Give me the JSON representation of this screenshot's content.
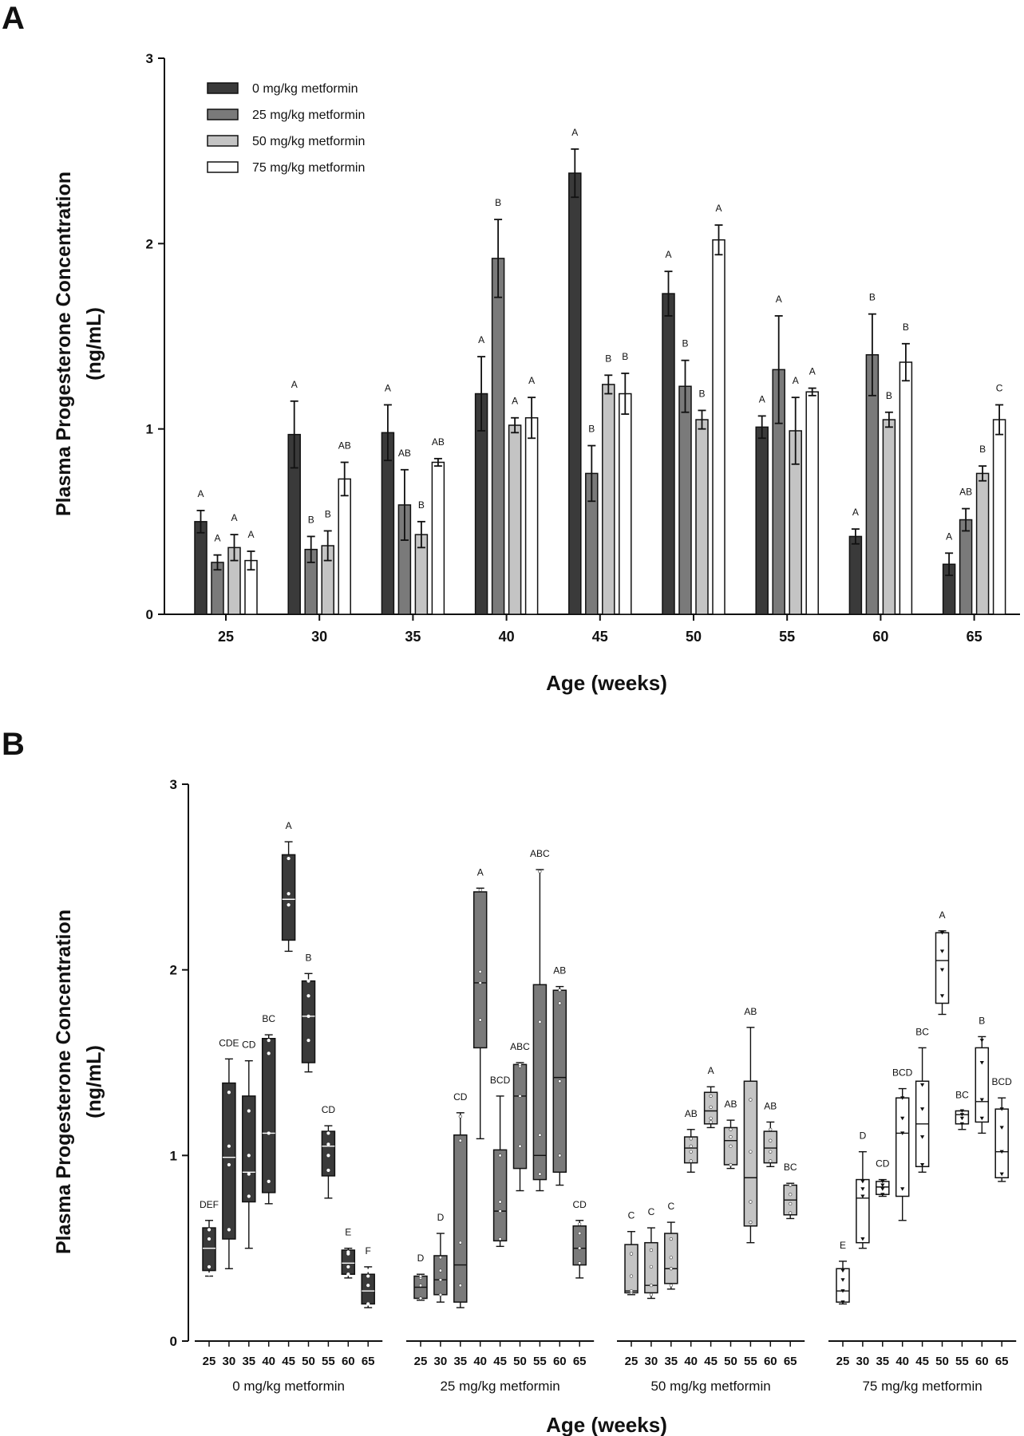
{
  "figure": {
    "panel_a_label": "A",
    "panel_b_label": "B"
  },
  "colors": {
    "dose0": "#3a3a3a",
    "dose25": "#7a7a7a",
    "dose50": "#c4c4c4",
    "dose75": "#ffffff",
    "stroke": "#111111"
  },
  "chart_data": [
    {
      "type": "bar",
      "panel": "A",
      "title": "",
      "xlabel": "Age (weeks)",
      "ylabel_line1": "Plasma Progesterone Concentration",
      "ylabel_line2": "(ng/mL)",
      "ylim": [
        0,
        3
      ],
      "yticks": [
        0,
        1,
        2,
        3
      ],
      "legend_position": "top-left",
      "categories": [
        "25",
        "30",
        "35",
        "40",
        "45",
        "50",
        "55",
        "60",
        "65"
      ],
      "series": [
        {
          "name": "0 mg/kg metformin",
          "values": [
            0.5,
            0.97,
            0.98,
            1.19,
            2.38,
            1.73,
            1.01,
            0.42,
            0.27
          ],
          "errors": [
            0.06,
            0.18,
            0.15,
            0.2,
            0.13,
            0.12,
            0.06,
            0.04,
            0.06
          ],
          "letters": [
            "A",
            "A",
            "A",
            "A",
            "A",
            "A",
            "A",
            "A",
            "A"
          ]
        },
        {
          "name": "25 mg/kg metformin",
          "values": [
            0.28,
            0.35,
            0.59,
            1.92,
            0.76,
            1.23,
            1.32,
            1.4,
            0.51
          ],
          "errors": [
            0.04,
            0.07,
            0.19,
            0.21,
            0.15,
            0.14,
            0.29,
            0.22,
            0.06
          ],
          "letters": [
            "A",
            "B",
            "AB",
            "B",
            "B",
            "B",
            "A",
            "B",
            "AB"
          ]
        },
        {
          "name": "50 mg/kg metformin",
          "values": [
            0.36,
            0.37,
            0.43,
            1.02,
            1.24,
            1.05,
            0.99,
            1.05,
            0.76
          ],
          "errors": [
            0.07,
            0.08,
            0.07,
            0.04,
            0.05,
            0.05,
            0.18,
            0.04,
            0.04
          ],
          "letters": [
            "A",
            "B",
            "B",
            "A",
            "B",
            "B",
            "A",
            "B",
            "B"
          ]
        },
        {
          "name": "75 mg/kg metformin",
          "values": [
            0.29,
            0.73,
            0.82,
            1.06,
            1.19,
            2.02,
            1.2,
            1.36,
            1.05
          ],
          "errors": [
            0.05,
            0.09,
            0.02,
            0.11,
            0.11,
            0.08,
            0.02,
            0.1,
            0.08
          ],
          "letters": [
            "A",
            "AB",
            "AB",
            "A",
            "B",
            "A",
            "A",
            "B",
            "C"
          ]
        }
      ]
    },
    {
      "type": "box",
      "panel": "B",
      "title": "",
      "xlabel": "Age (weeks)",
      "ylabel_line1": "Plasma Progesterone Concentration",
      "ylabel_line2": "(ng/mL)",
      "ylim": [
        0,
        3
      ],
      "yticks": [
        0,
        1,
        2,
        3
      ],
      "ages": [
        "25",
        "30",
        "35",
        "40",
        "45",
        "50",
        "55",
        "60",
        "65"
      ],
      "groups": [
        {
          "name": "0 mg/kg metformin",
          "letters": [
            "DEF",
            "CDE",
            "CD",
            "BC",
            "A",
            "B",
            "CD",
            "E",
            "F"
          ],
          "boxes": [
            {
              "min": 0.35,
              "q1": 0.38,
              "median": 0.5,
              "q3": 0.61,
              "max": 0.65,
              "points": [
                0.36,
                0.4,
                0.55,
                0.6
              ]
            },
            {
              "min": 0.39,
              "q1": 0.55,
              "median": 0.99,
              "q3": 1.39,
              "max": 1.52,
              "points": [
                0.6,
                0.95,
                1.05,
                1.34
              ]
            },
            {
              "min": 0.5,
              "q1": 0.75,
              "median": 0.91,
              "q3": 1.32,
              "max": 1.51,
              "points": [
                0.78,
                0.9,
                1.0,
                1.24
              ]
            },
            {
              "min": 0.74,
              "q1": 0.8,
              "median": 1.12,
              "q3": 1.63,
              "max": 1.65,
              "points": [
                0.86,
                1.12,
                1.55,
                1.62
              ]
            },
            {
              "min": 2.1,
              "q1": 2.16,
              "median": 2.38,
              "q3": 2.62,
              "max": 2.69,
              "points": [
                2.35,
                2.41,
                2.6
              ]
            },
            {
              "min": 1.45,
              "q1": 1.5,
              "median": 1.75,
              "q3": 1.94,
              "max": 1.98,
              "points": [
                1.62,
                1.75,
                1.86,
                1.94
              ]
            },
            {
              "min": 0.77,
              "q1": 0.89,
              "median": 1.05,
              "q3": 1.13,
              "max": 1.16,
              "points": [
                0.92,
                1.0,
                1.06,
                1.12
              ]
            },
            {
              "min": 0.34,
              "q1": 0.36,
              "median": 0.42,
              "q3": 0.49,
              "max": 0.5,
              "points": [
                0.36,
                0.4,
                0.47,
                0.48
              ]
            },
            {
              "min": 0.18,
              "q1": 0.2,
              "median": 0.27,
              "q3": 0.36,
              "max": 0.4,
              "points": [
                0.2,
                0.3,
                0.35,
                0.38
              ]
            }
          ]
        },
        {
          "name": "25 mg/kg metformin",
          "letters": [
            "D",
            "D",
            "CD",
            "A",
            "BCD",
            "ABC",
            "ABC",
            "AB",
            "CD"
          ],
          "boxes": [
            {
              "min": 0.22,
              "q1": 0.23,
              "median": 0.29,
              "q3": 0.35,
              "max": 0.36,
              "points": [
                0.23,
                0.3,
                0.34,
                0.35
              ]
            },
            {
              "min": 0.21,
              "q1": 0.25,
              "median": 0.33,
              "q3": 0.46,
              "max": 0.58,
              "points": [
                0.25,
                0.33,
                0.38,
                0.45
              ]
            },
            {
              "min": 0.18,
              "q1": 0.21,
              "median": 0.41,
              "q3": 1.11,
              "max": 1.23,
              "points": [
                0.3,
                0.53,
                1.08,
                1.21
              ]
            },
            {
              "min": 1.09,
              "q1": 1.58,
              "median": 1.93,
              "q3": 2.42,
              "max": 2.44,
              "points": [
                1.73,
                1.93,
                1.99,
                2.43
              ]
            },
            {
              "min": 0.51,
              "q1": 0.54,
              "median": 0.7,
              "q3": 1.03,
              "max": 1.32,
              "points": [
                0.55,
                0.7,
                0.75,
                1.0
              ]
            },
            {
              "min": 0.81,
              "q1": 0.93,
              "median": 1.32,
              "q3": 1.49,
              "max": 1.5,
              "points": [
                1.05,
                1.32,
                1.48,
                1.49
              ]
            },
            {
              "min": 0.81,
              "q1": 0.87,
              "median": 1.0,
              "q3": 1.92,
              "max": 2.54,
              "points": [
                0.9,
                1.11,
                1.72,
                2.53
              ]
            },
            {
              "min": 0.84,
              "q1": 0.91,
              "median": 1.42,
              "q3": 1.89,
              "max": 1.91,
              "points": [
                1.0,
                1.4,
                1.82,
                1.89
              ]
            },
            {
              "min": 0.34,
              "q1": 0.41,
              "median": 0.5,
              "q3": 0.62,
              "max": 0.65,
              "points": [
                0.42,
                0.5,
                0.58,
                0.63
              ]
            }
          ]
        },
        {
          "name": "50 mg/kg metformin",
          "letters": [
            "C",
            "C",
            "C",
            "AB",
            "A",
            "AB",
            "AB",
            "AB",
            "BC"
          ],
          "boxes": [
            {
              "min": 0.25,
              "q1": 0.26,
              "median": 0.27,
              "q3": 0.52,
              "max": 0.59,
              "points": [
                0.26,
                0.27,
                0.35,
                0.47
              ]
            },
            {
              "min": 0.23,
              "q1": 0.26,
              "median": 0.3,
              "q3": 0.53,
              "max": 0.61,
              "points": [
                0.25,
                0.3,
                0.4,
                0.49
              ]
            },
            {
              "min": 0.28,
              "q1": 0.31,
              "median": 0.39,
              "q3": 0.58,
              "max": 0.64,
              "points": [
                0.3,
                0.39,
                0.45,
                0.55
              ]
            },
            {
              "min": 0.91,
              "q1": 0.96,
              "median": 1.04,
              "q3": 1.1,
              "max": 1.14,
              "points": [
                0.97,
                1.02,
                1.05,
                1.09
              ]
            },
            {
              "min": 1.15,
              "q1": 1.17,
              "median": 1.24,
              "q3": 1.34,
              "max": 1.37,
              "points": [
                1.18,
                1.2,
                1.26,
                1.32
              ]
            },
            {
              "min": 0.93,
              "q1": 0.95,
              "median": 1.08,
              "q3": 1.15,
              "max": 1.19,
              "points": [
                0.95,
                1.05,
                1.1,
                1.14
              ]
            },
            {
              "min": 0.53,
              "q1": 0.62,
              "median": 0.88,
              "q3": 1.4,
              "max": 1.69,
              "points": [
                0.64,
                0.75,
                1.02,
                1.3
              ]
            },
            {
              "min": 0.94,
              "q1": 0.96,
              "median": 1.04,
              "q3": 1.13,
              "max": 1.18,
              "points": [
                0.97,
                1.02,
                1.08,
                1.14
              ]
            },
            {
              "min": 0.66,
              "q1": 0.68,
              "median": 0.76,
              "q3": 0.84,
              "max": 0.85,
              "points": [
                0.69,
                0.74,
                0.79,
                0.84
              ]
            }
          ]
        },
        {
          "name": "75 mg/kg metformin",
          "letters": [
            "E",
            "D",
            "CD",
            "BCD",
            "BC",
            "A",
            "BC",
            "B",
            "BCD"
          ],
          "boxes": [
            {
              "min": 0.2,
              "q1": 0.21,
              "median": 0.27,
              "q3": 0.39,
              "max": 0.43,
              "points": [
                0.21,
                0.27,
                0.33,
                0.38
              ]
            },
            {
              "min": 0.5,
              "q1": 0.53,
              "median": 0.77,
              "q3": 0.87,
              "max": 1.02,
              "points": [
                0.55,
                0.78,
                0.82,
                0.86
              ]
            },
            {
              "min": 0.78,
              "q1": 0.79,
              "median": 0.83,
              "q3": 0.86,
              "max": 0.87,
              "points": [
                0.79,
                0.82,
                0.84,
                0.86
              ]
            },
            {
              "min": 0.65,
              "q1": 0.78,
              "median": 1.12,
              "q3": 1.31,
              "max": 1.36,
              "points": [
                0.82,
                1.12,
                1.2,
                1.31
              ]
            },
            {
              "min": 0.91,
              "q1": 0.94,
              "median": 1.17,
              "q3": 1.4,
              "max": 1.58,
              "points": [
                0.95,
                1.1,
                1.25,
                1.38
              ]
            },
            {
              "min": 1.76,
              "q1": 1.82,
              "median": 2.05,
              "q3": 2.2,
              "max": 2.21,
              "points": [
                1.86,
                2.0,
                2.1,
                2.2
              ]
            },
            {
              "min": 1.14,
              "q1": 1.17,
              "median": 1.22,
              "q3": 1.24,
              "max": 1.24,
              "points": [
                1.17,
                1.2,
                1.22,
                1.24
              ]
            },
            {
              "min": 1.12,
              "q1": 1.18,
              "median": 1.29,
              "q3": 1.58,
              "max": 1.64,
              "points": [
                1.2,
                1.3,
                1.5,
                1.62
              ]
            },
            {
              "min": 0.86,
              "q1": 0.88,
              "median": 1.02,
              "q3": 1.25,
              "max": 1.31,
              "points": [
                0.9,
                1.02,
                1.15,
                1.25
              ]
            }
          ]
        }
      ]
    }
  ]
}
